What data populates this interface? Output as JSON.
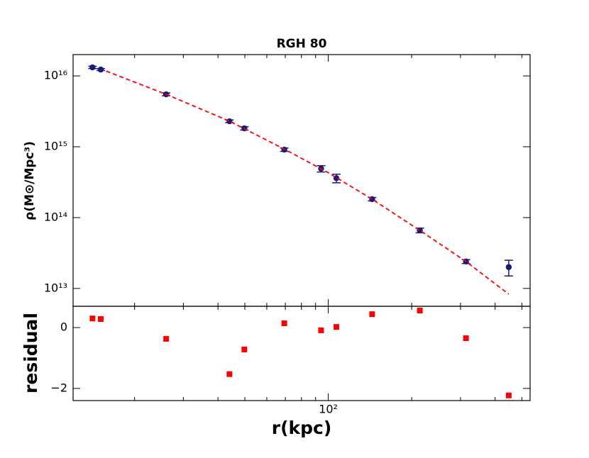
{
  "chart_data": [
    {
      "type": "scatter",
      "title": "RGH 80",
      "ylabel": "ρ(M⊙/Mpc³)",
      "log_x": true,
      "log_y": true,
      "xlim": [
        12,
        535
      ],
      "ylim": [
        5600000000000.0,
        2e+16
      ],
      "yticks": [
        {
          "value": 10000000000000.0,
          "label": "10¹³"
        },
        {
          "value": 100000000000000.0,
          "label": "10¹⁴"
        },
        {
          "value": 1000000000000000.0,
          "label": "10¹⁵"
        },
        {
          "value": 1e+16,
          "label": "10¹⁶"
        }
      ],
      "xticks": [
        100
      ],
      "xminorticks": [
        20,
        30,
        40,
        50,
        60,
        70,
        80,
        90,
        200,
        300,
        400,
        500
      ],
      "series": [
        {
          "type": "errorbar",
          "color": "#1a1a7a",
          "x": [
            14.1,
            15.1,
            26.0,
            44.0,
            49.8,
            69.4,
            94.2,
            107,
            144,
            214,
            314,
            448
          ],
          "values": [
            1.32e+16,
            1.23e+16,
            5500000000000000.0,
            2290000000000000.0,
            1820000000000000.0,
            910000000000000.0,
            490000000000000.0,
            360000000000000.0,
            182000000000000.0,
            66000000000000.0,
            24000000000000.0,
            20000000000000.0
          ],
          "errors": [
            500000000000000.0,
            400000000000000.0,
            250000000000000.0,
            100000000000000.0,
            100000000000000.0,
            50000000000000.0,
            50000000000000.0,
            50000000000000.0,
            10000000000000.0,
            5000000000000.0,
            1500000000000.0,
            5000000000000.0
          ]
        },
        {
          "type": "line",
          "color": "#ff0000",
          "dashed": true,
          "x": [
            15.8,
            26,
            44,
            70,
            100,
            144,
            214,
            314,
            448
          ],
          "values": [
            1.17e+16,
            5500000000000000.0,
            2300000000000000.0,
            910000000000000.0,
            430000000000000.0,
            182000000000000.0,
            66000000000000.0,
            24000000000000.0,
            8300000000000.0
          ]
        }
      ]
    },
    {
      "type": "scatter",
      "ylabel": "residual",
      "xlabel": "r(kpc)",
      "log_x": true,
      "xlim": [
        12,
        535
      ],
      "ylim": [
        -2.4,
        0.7
      ],
      "yticks": [
        {
          "value": -2,
          "label": "−2"
        },
        0
      ],
      "xticks": [
        {
          "value": 100,
          "label": "10²"
        }
      ],
      "xminorticks": [
        20,
        30,
        40,
        50,
        60,
        70,
        80,
        90,
        200,
        300,
        400,
        500
      ],
      "series": [
        {
          "type": "square",
          "color": "#ff0000",
          "x": [
            14.1,
            15.1,
            26.0,
            44.0,
            49.8,
            69.4,
            94.2,
            107,
            144,
            214,
            314,
            448
          ],
          "values": [
            0.3,
            0.28,
            -0.37,
            -1.53,
            -0.72,
            0.14,
            -0.09,
            0.02,
            0.44,
            0.56,
            -0.35,
            -2.23
          ]
        }
      ]
    }
  ]
}
